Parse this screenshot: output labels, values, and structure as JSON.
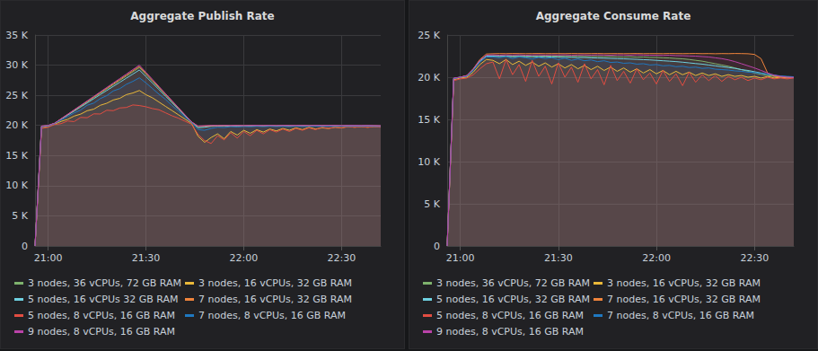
{
  "chart_data": [
    {
      "type": "line",
      "title": "Aggregate Publish Rate",
      "categories": [
        null,
        null,
        "21:00",
        null,
        null,
        null,
        null,
        null,
        null,
        null,
        null,
        null,
        null,
        null,
        null,
        null,
        null,
        "21:30",
        null,
        null,
        null,
        null,
        null,
        null,
        null,
        null,
        null,
        null,
        null,
        null,
        null,
        null,
        "22:00",
        null,
        null,
        null,
        null,
        null,
        null,
        null,
        null,
        null,
        null,
        null,
        null,
        null,
        null,
        "22:30",
        null,
        null,
        null,
        null,
        null,
        null
      ],
      "ylim": [
        0,
        35000
      ],
      "yticks": [
        0,
        {
          "value": 5000,
          "label": "5 K"
        },
        {
          "value": 10000,
          "label": "10 K"
        },
        {
          "value": 15000,
          "label": "15 K"
        },
        {
          "value": 20000,
          "label": "20 K"
        },
        {
          "value": 25000,
          "label": "25 K"
        },
        {
          "value": 30000,
          "label": "30 K"
        },
        {
          "value": 35000,
          "label": "35 K"
        }
      ],
      "grid": true,
      "legend": "bottom",
      "series": [
        {
          "name": "3 nodes, 36 vCPUs, 72 GB RAM",
          "color": "#7eb26d",
          "values": [
            0,
            19850,
            19960,
            20350,
            21070,
            21780,
            22490,
            23200,
            23910,
            24620,
            25340,
            26050,
            26760,
            27470,
            28180,
            28890,
            29600,
            28470,
            27340,
            26210,
            25080,
            23950,
            22820,
            21690,
            20570,
            19800,
            19850,
            19900,
            19940,
            19960,
            19920,
            19950,
            19930,
            19960,
            19940,
            19920,
            19950,
            19930,
            19960,
            19940,
            19920,
            19950,
            19930,
            19960,
            19940,
            19920,
            19950,
            19930,
            19960,
            19940,
            19920,
            19950,
            19930,
            19900
          ]
        },
        {
          "name": "3 nodes, 16 vCPUs, 32 GB RAM",
          "color": "#eab839",
          "values": [
            0,
            19600,
            19800,
            20220,
            20670,
            21010,
            21550,
            21880,
            22440,
            22700,
            23340,
            23680,
            24220,
            24500,
            25110,
            25380,
            25800,
            25100,
            24590,
            23880,
            23170,
            22470,
            21760,
            21050,
            20350,
            18200,
            17200,
            18000,
            18600,
            17800,
            19000,
            18400,
            19200,
            18700,
            19300,
            18900,
            19400,
            19100,
            19500,
            19200,
            19600,
            19300,
            19700,
            19400,
            19600,
            19500,
            19700,
            19600,
            19800,
            19700,
            19800,
            19700,
            19800,
            19750
          ]
        },
        {
          "name": "5 nodes, 16 vCPUs 32 GB RAM",
          "color": "#6ed0e0",
          "values": [
            0,
            19850,
            19950,
            20340,
            21020,
            21700,
            22380,
            23060,
            23740,
            24430,
            25120,
            25800,
            26480,
            27160,
            27840,
            28520,
            29200,
            28110,
            27040,
            25950,
            24870,
            23790,
            22700,
            21620,
            20540,
            19600,
            19700,
            19850,
            19900,
            19920,
            19880,
            19930,
            19900,
            19920,
            19890,
            19900,
            19930,
            19880,
            19920,
            19900,
            19890,
            19930,
            19900,
            19920,
            19890,
            19900,
            19930,
            19880,
            19920,
            19900,
            19890,
            19930,
            19900,
            19880
          ]
        },
        {
          "name": "7 nodes, 16 vCPUs, 32 GB RAM",
          "color": "#ef843c",
          "values": [
            0,
            19880,
            19980,
            20360,
            21090,
            21810,
            22540,
            23260,
            23990,
            24710,
            25450,
            26170,
            26900,
            27620,
            28350,
            29070,
            29800,
            28640,
            27500,
            26340,
            25180,
            24040,
            22880,
            21720,
            20570,
            19850,
            19900,
            19970,
            19950,
            19980,
            19960,
            19990,
            19950,
            19980,
            19970,
            19960,
            19990,
            19950,
            19980,
            19970,
            19960,
            19990,
            19950,
            19980,
            19970,
            19960,
            19990,
            19950,
            19980,
            19970,
            19960,
            19990,
            19950,
            19930
          ]
        },
        {
          "name": "5 nodes, 8 vCPUs, 16 GB RAM",
          "color": "#e24d42",
          "values": [
            0,
            19500,
            19700,
            20150,
            20300,
            20740,
            20640,
            21330,
            21280,
            21920,
            21900,
            22520,
            22450,
            22900,
            22980,
            23400,
            23300,
            23100,
            22800,
            22600,
            22100,
            21600,
            21200,
            20700,
            20200,
            18500,
            17500,
            17000,
            18300,
            17600,
            18800,
            17900,
            19000,
            18300,
            19200,
            18600,
            19300,
            18900,
            19400,
            19000,
            19500,
            19200,
            19600,
            19300,
            19700,
            19500,
            19700,
            19600,
            19800,
            19700,
            19800,
            19700,
            19800,
            19700
          ]
        },
        {
          "name": "7 nodes, 8 vCPUs, 16 GB RAM",
          "color": "#1f78c1",
          "values": [
            0,
            19800,
            19900,
            20300,
            20890,
            21480,
            22070,
            22560,
            23350,
            23700,
            24450,
            24940,
            25730,
            26100,
            26820,
            27310,
            27900,
            27060,
            26120,
            25180,
            24330,
            23300,
            22350,
            21400,
            20470,
            19300,
            19200,
            19500,
            19700,
            19650,
            19800,
            19750,
            19820,
            19780,
            19850,
            19800,
            19860,
            19820,
            19850,
            19800,
            19870,
            19820,
            19850,
            19880,
            19830,
            19860,
            19840,
            19880,
            19850,
            19870,
            19860,
            19880,
            19850,
            19830
          ]
        },
        {
          "name": "9 nodes, 8 vCPUs, 16 GB RAM",
          "color": "#ba43a9",
          "values": [
            0,
            19900,
            20000,
            20370,
            21110,
            21850,
            22590,
            23330,
            24070,
            24810,
            25560,
            26300,
            27040,
            27780,
            28520,
            29260,
            30000,
            28820,
            27650,
            26470,
            25290,
            24120,
            22940,
            21760,
            20590,
            19900,
            19950,
            20000,
            19980,
            20000,
            19990,
            20000,
            19980,
            20000,
            20000,
            19990,
            20000,
            19980,
            20000,
            20000,
            19990,
            20000,
            19980,
            20000,
            20000,
            19990,
            20000,
            19980,
            20000,
            20000,
            19990,
            20000,
            19980,
            19950
          ]
        }
      ]
    },
    {
      "type": "line",
      "title": "Aggregate Consume Rate",
      "categories": [
        null,
        null,
        "21:00",
        null,
        null,
        null,
        null,
        null,
        null,
        null,
        null,
        null,
        null,
        null,
        null,
        null,
        null,
        "21:30",
        null,
        null,
        null,
        null,
        null,
        null,
        null,
        null,
        null,
        null,
        null,
        null,
        null,
        null,
        "22:00",
        null,
        null,
        null,
        null,
        null,
        null,
        null,
        null,
        null,
        null,
        null,
        null,
        null,
        null,
        "22:30",
        null,
        null,
        null,
        null,
        null,
        null
      ],
      "ylim": [
        0,
        25000
      ],
      "yticks": [
        0,
        {
          "value": 5000,
          "label": "5 K"
        },
        {
          "value": 10000,
          "label": "10 K"
        },
        {
          "value": 15000,
          "label": "15 K"
        },
        {
          "value": 20000,
          "label": "20 K"
        },
        {
          "value": 25000,
          "label": "25 K"
        }
      ],
      "grid": true,
      "legend": "bottom",
      "series": [
        {
          "name": "3 nodes, 36 vCPUs, 72 GB RAM",
          "color": "#7eb26d",
          "values": [
            0,
            19850,
            20000,
            20150,
            20900,
            21900,
            22500,
            22550,
            22500,
            22530,
            22480,
            22520,
            22500,
            22460,
            22510,
            22480,
            22500,
            22470,
            22490,
            22450,
            22480,
            22460,
            22440,
            22470,
            22430,
            22450,
            22420,
            22400,
            22430,
            22380,
            22400,
            22350,
            22350,
            22300,
            22280,
            22220,
            22180,
            22100,
            22000,
            21900,
            21750,
            21600,
            21450,
            21300,
            21100,
            20900,
            20700,
            20500,
            20350,
            20200,
            20100,
            20050,
            20000,
            19980
          ]
        },
        {
          "name": "3 nodes, 16 vCPUs, 32 GB RAM",
          "color": "#eab839",
          "values": [
            0,
            19700,
            19900,
            20000,
            20600,
            21500,
            22100,
            22000,
            21600,
            22100,
            21500,
            21900,
            21400,
            21800,
            21300,
            21700,
            21200,
            21600,
            21100,
            21500,
            21000,
            21400,
            20900,
            21300,
            20800,
            21200,
            20700,
            21100,
            20600,
            21000,
            20500,
            20900,
            20400,
            20800,
            20300,
            20700,
            20300,
            20600,
            20200,
            20500,
            20200,
            20400,
            20100,
            20300,
            20100,
            20200,
            20000,
            20100,
            19900,
            20100,
            19900,
            20000,
            19900,
            20000
          ]
        },
        {
          "name": "5 nodes, 16 vCPUs, 32 GB RAM",
          "color": "#6ed0e0",
          "values": [
            0,
            19850,
            20000,
            20150,
            20900,
            21900,
            22500,
            22500,
            22450,
            22480,
            22430,
            22460,
            22420,
            22440,
            22400,
            22420,
            22380,
            22400,
            22350,
            22370,
            22320,
            22340,
            22300,
            22280,
            22250,
            22230,
            22200,
            22180,
            22150,
            22120,
            22080,
            22050,
            22000,
            21950,
            21900,
            21850,
            21780,
            21700,
            21620,
            21550,
            21450,
            21350,
            21250,
            21150,
            21050,
            20900,
            20800,
            20650,
            20500,
            20350,
            20200,
            20100,
            20050,
            20000
          ]
        },
        {
          "name": "7 nodes, 16 vCPUs, 32 GB RAM",
          "color": "#ef843c",
          "values": [
            0,
            19800,
            20000,
            20200,
            21000,
            22100,
            22750,
            22780,
            22800,
            22790,
            22810,
            22800,
            22790,
            22800,
            22810,
            22790,
            22800,
            22800,
            22790,
            22810,
            22800,
            22790,
            22800,
            22810,
            22790,
            22800,
            22800,
            22790,
            22800,
            22810,
            22790,
            22800,
            22800,
            22790,
            22810,
            22800,
            22790,
            22800,
            22810,
            22790,
            22800,
            22780,
            22800,
            22790,
            22810,
            22800,
            22780,
            22700,
            22200,
            20500,
            20100,
            20000,
            20000,
            19950
          ]
        },
        {
          "name": "5 nodes, 8 vCPUs, 16 GB RAM",
          "color": "#e24d42",
          "values": [
            0,
            19600,
            19800,
            19900,
            20300,
            21000,
            21600,
            21800,
            19800,
            22100,
            20300,
            21500,
            19500,
            22000,
            20100,
            21300,
            19200,
            21700,
            20000,
            21200,
            19400,
            21600,
            19800,
            20900,
            19100,
            21400,
            19600,
            20700,
            19300,
            21000,
            19700,
            20500,
            19200,
            20800,
            19500,
            20400,
            19000,
            20600,
            19400,
            20300,
            19600,
            20200,
            19500,
            20100,
            19700,
            20000,
            19600,
            19900,
            19700,
            20000,
            19800,
            19900,
            19800,
            19900
          ]
        },
        {
          "name": "7 nodes, 8 vCPUs, 16 GB RAM",
          "color": "#1f78c1",
          "values": [
            0,
            19800,
            20000,
            20100,
            20800,
            21800,
            22400,
            22400,
            22300,
            22450,
            22200,
            22400,
            22300,
            22150,
            22350,
            22200,
            22300,
            22100,
            22250,
            22000,
            22150,
            21950,
            22050,
            21850,
            21950,
            21750,
            21800,
            21650,
            21700,
            21550,
            21600,
            21450,
            21500,
            21350,
            21400,
            21250,
            21300,
            21150,
            21200,
            21050,
            21100,
            20950,
            20900,
            20850,
            20750,
            20700,
            20600,
            20550,
            20450,
            20350,
            20250,
            20150,
            20100,
            20050
          ]
        },
        {
          "name": "9 nodes, 8 vCPUs, 16 GB RAM",
          "color": "#ba43a9",
          "values": [
            0,
            19900,
            20000,
            20200,
            21000,
            22000,
            22600,
            22650,
            22600,
            22640,
            22620,
            22650,
            22600,
            22630,
            22650,
            22610,
            22640,
            22620,
            22650,
            22600,
            22630,
            22640,
            22610,
            22650,
            22620,
            22600,
            22640,
            22630,
            22610,
            22650,
            22620,
            22600,
            22600,
            22580,
            22600,
            22560,
            22550,
            22520,
            22500,
            22450,
            22400,
            22300,
            22200,
            22050,
            21850,
            21600,
            21350,
            21100,
            20800,
            20500,
            20250,
            20100,
            20000,
            19980
          ]
        }
      ]
    }
  ]
}
